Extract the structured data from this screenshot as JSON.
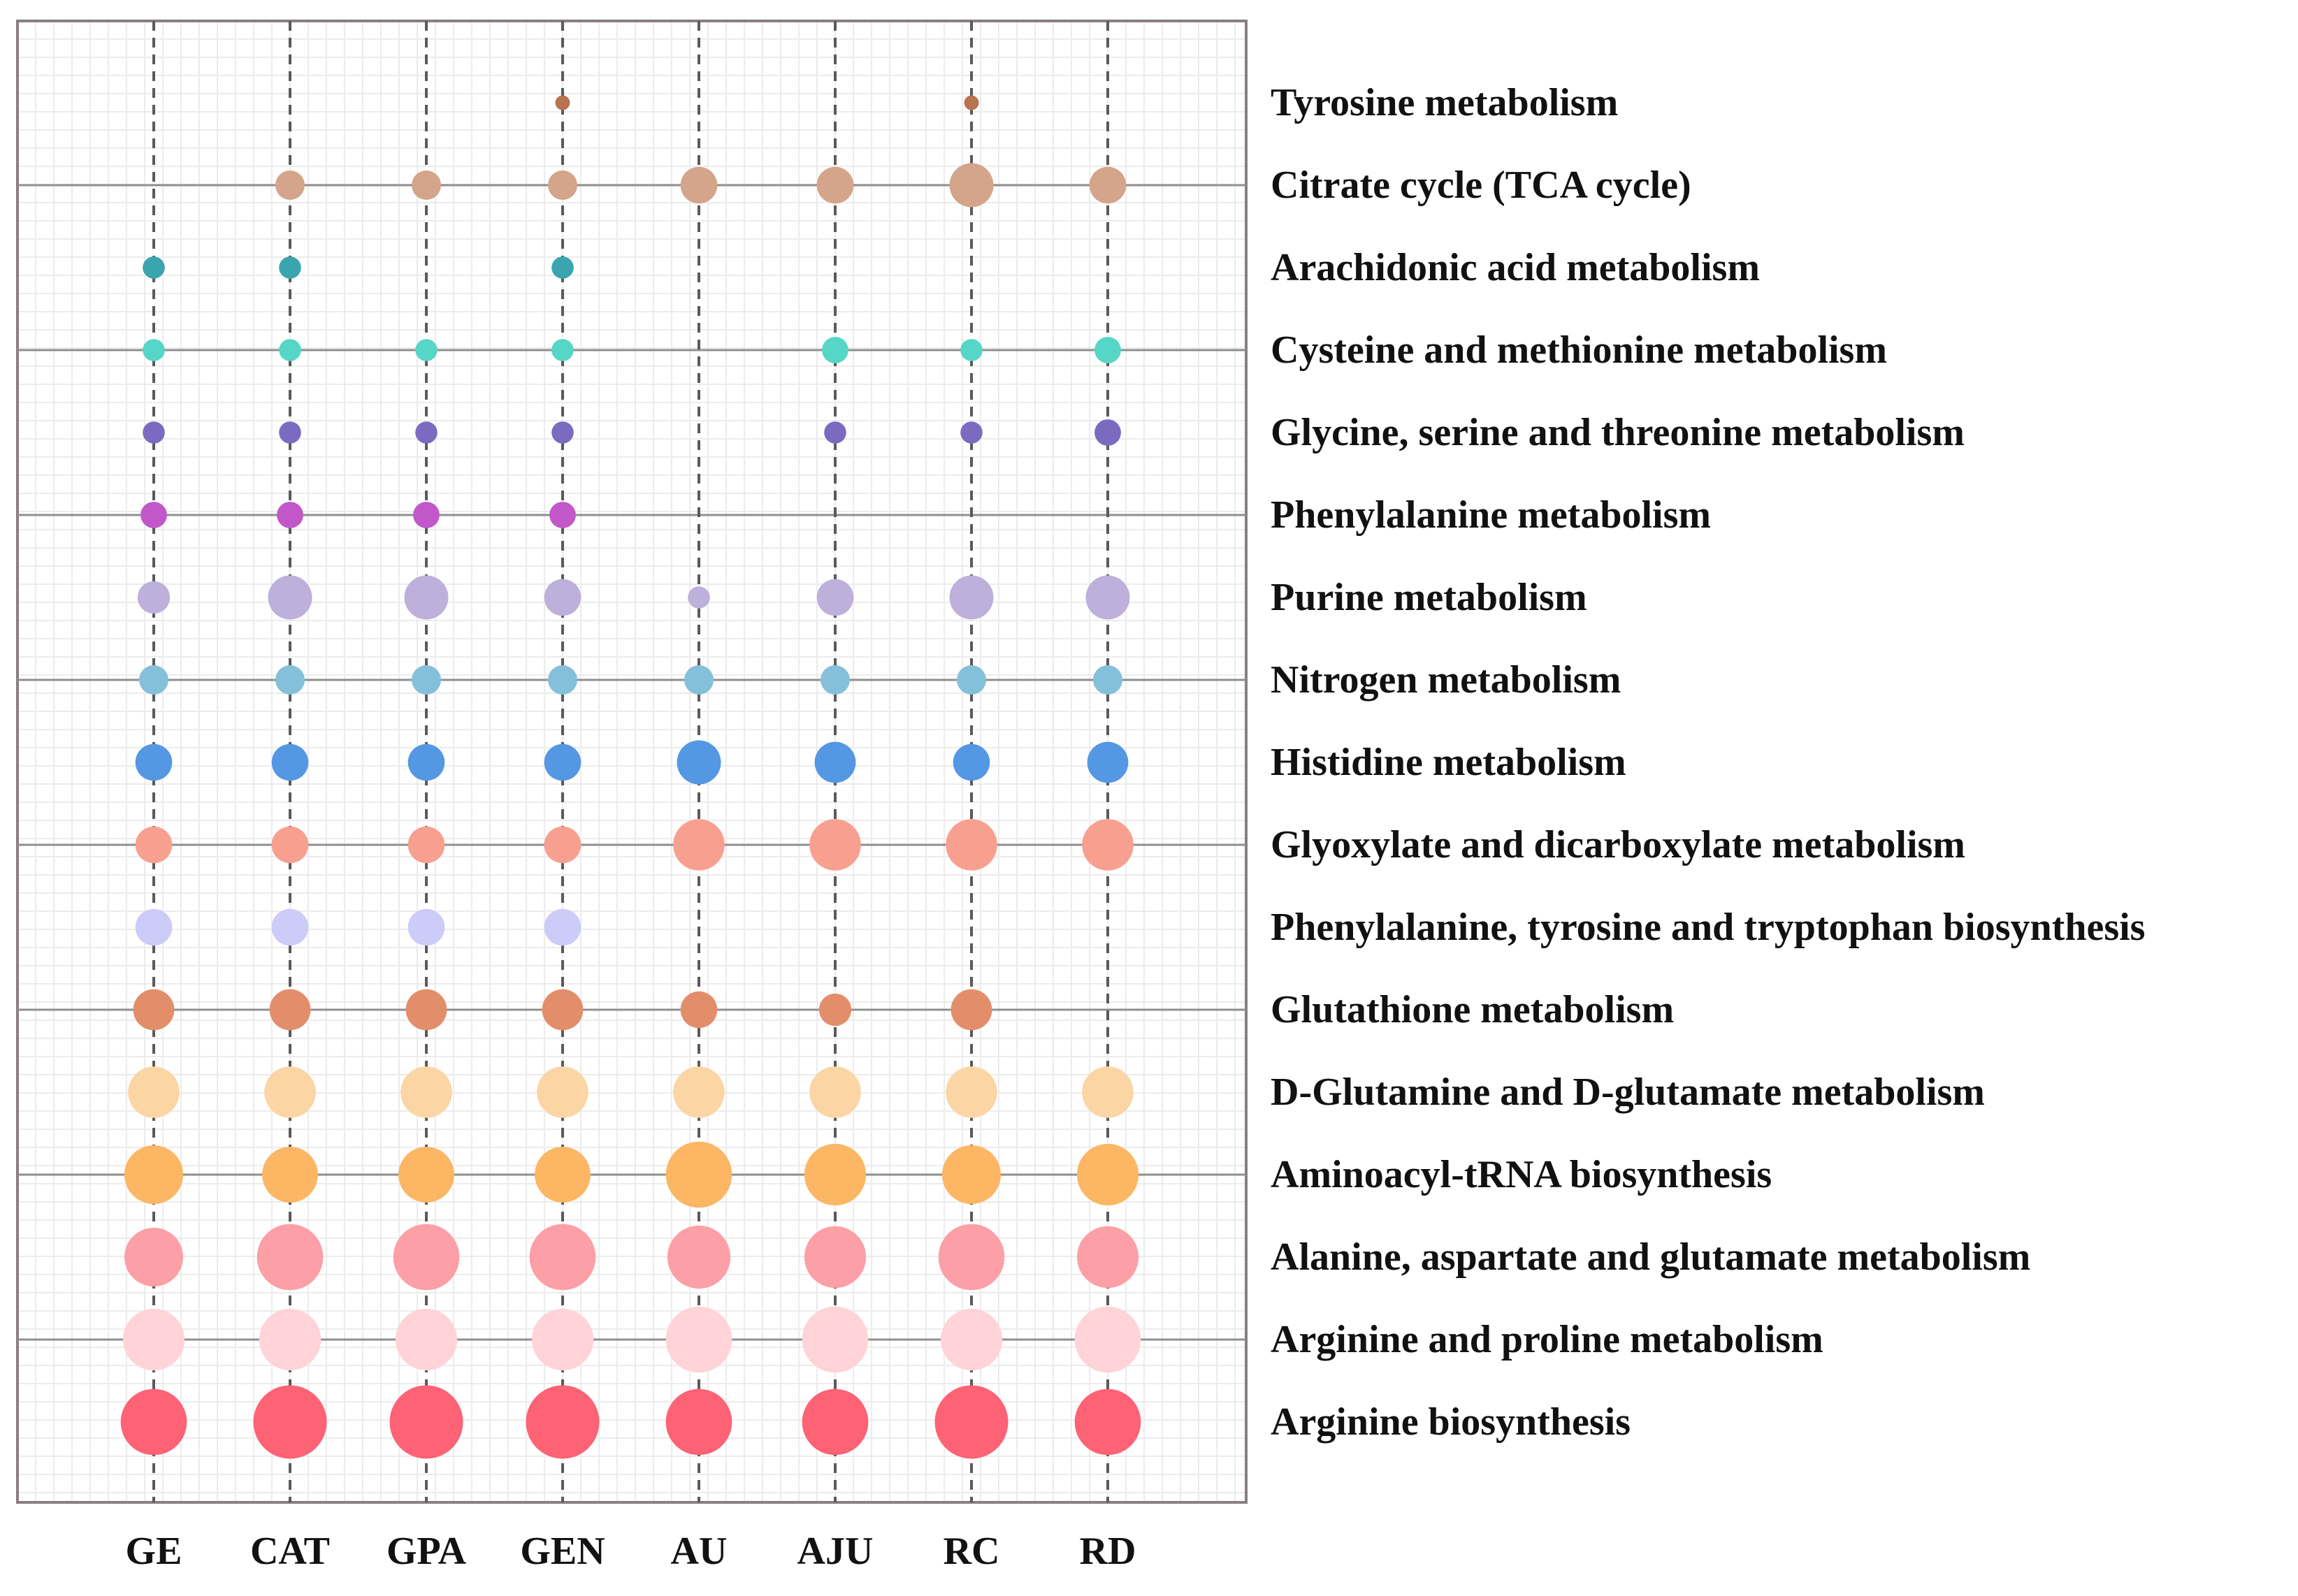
{
  "chart_data": {
    "type": "bubble-matrix",
    "title": "",
    "xlabel": "",
    "ylabel": "",
    "grid": true,
    "samples": [
      "GE",
      "CAT",
      "GPA",
      "GEN",
      "AU",
      "AJU",
      "RC",
      "RD"
    ],
    "pathways": [
      {
        "name": "Tyrosine metabolism",
        "color": "#B8734F",
        "sizes": [
          0,
          0,
          0,
          1,
          0,
          0,
          1,
          0
        ]
      },
      {
        "name": "Citrate cycle (TCA cycle)",
        "color": "#D4A58B",
        "sizes": [
          0,
          2,
          2,
          2,
          2.5,
          2.5,
          3,
          2.5
        ]
      },
      {
        "name": "Arachidonic acid metabolism",
        "color": "#3AA5AE",
        "sizes": [
          1.5,
          1.5,
          0,
          1.5,
          0,
          0,
          0,
          0
        ]
      },
      {
        "name": "Cysteine and methionine metabolism",
        "color": "#56D6C6",
        "sizes": [
          1.5,
          1.5,
          1.5,
          1.5,
          0,
          1.8,
          1.5,
          1.8
        ]
      },
      {
        "name": "Glycine, serine and threonine metabolism",
        "color": "#7B6BC0",
        "sizes": [
          1.5,
          1.5,
          1.5,
          1.5,
          0,
          1.5,
          1.5,
          1.8
        ]
      },
      {
        "name": "Phenylalanine metabolism",
        "color": "#C257C9",
        "sizes": [
          1.8,
          1.8,
          1.8,
          1.8,
          0,
          0,
          0,
          0
        ]
      },
      {
        "name": "Purine metabolism",
        "color": "#BDB0DB",
        "sizes": [
          2.2,
          3,
          3,
          2.5,
          1.5,
          2.5,
          3,
          3
        ]
      },
      {
        "name": "Nitrogen metabolism",
        "color": "#85C0DB",
        "sizes": [
          2,
          2,
          2,
          2,
          2,
          2,
          2,
          2
        ]
      },
      {
        "name": "Histidine metabolism",
        "color": "#5497E3",
        "sizes": [
          2.5,
          2.5,
          2.5,
          2.5,
          3,
          2.8,
          2.5,
          2.8
        ]
      },
      {
        "name": "Glyoxylate and dicarboxylate metabolism",
        "color": "#F8A090",
        "sizes": [
          2.5,
          2.5,
          2.5,
          2.5,
          3.5,
          3.5,
          3.5,
          3.5
        ]
      },
      {
        "name": "Phenylalanine, tyrosine and tryptophan biosynthesis",
        "color": "#CDCBF8",
        "sizes": [
          2.5,
          2.5,
          2.5,
          2.5,
          0,
          0,
          0,
          0
        ]
      },
      {
        "name": "Glutathione metabolism",
        "color": "#E38E6A",
        "sizes": [
          2.8,
          2.8,
          2.8,
          2.8,
          2.5,
          2.2,
          2.8,
          0
        ]
      },
      {
        "name": "D-Glutamine and D-glutamate metabolism",
        "color": "#FCD5A5",
        "sizes": [
          3.5,
          3.5,
          3.5,
          3.5,
          3.5,
          3.5,
          3.5,
          3.5
        ]
      },
      {
        "name": "Aminoacyl-tRNA biosynthesis",
        "color": "#FCB664",
        "sizes": [
          4,
          3.8,
          3.8,
          3.8,
          4.5,
          4.2,
          4,
          4.2
        ]
      },
      {
        "name": "Alanine, aspartate and glutamate metabolism",
        "color": "#FC9FA6",
        "sizes": [
          4,
          4.5,
          4.5,
          4.5,
          4.3,
          4.2,
          4.5,
          4.2
        ]
      },
      {
        "name": "Arginine and proline metabolism",
        "color": "#FFD3D8",
        "sizes": [
          4.2,
          4.2,
          4.2,
          4.2,
          4.5,
          4.5,
          4.2,
          4.5
        ]
      },
      {
        "name": "Arginine biosynthesis",
        "color": "#FD6275",
        "sizes": [
          4.5,
          5,
          5,
          5,
          4.5,
          4.5,
          5,
          4.5
        ]
      }
    ]
  }
}
